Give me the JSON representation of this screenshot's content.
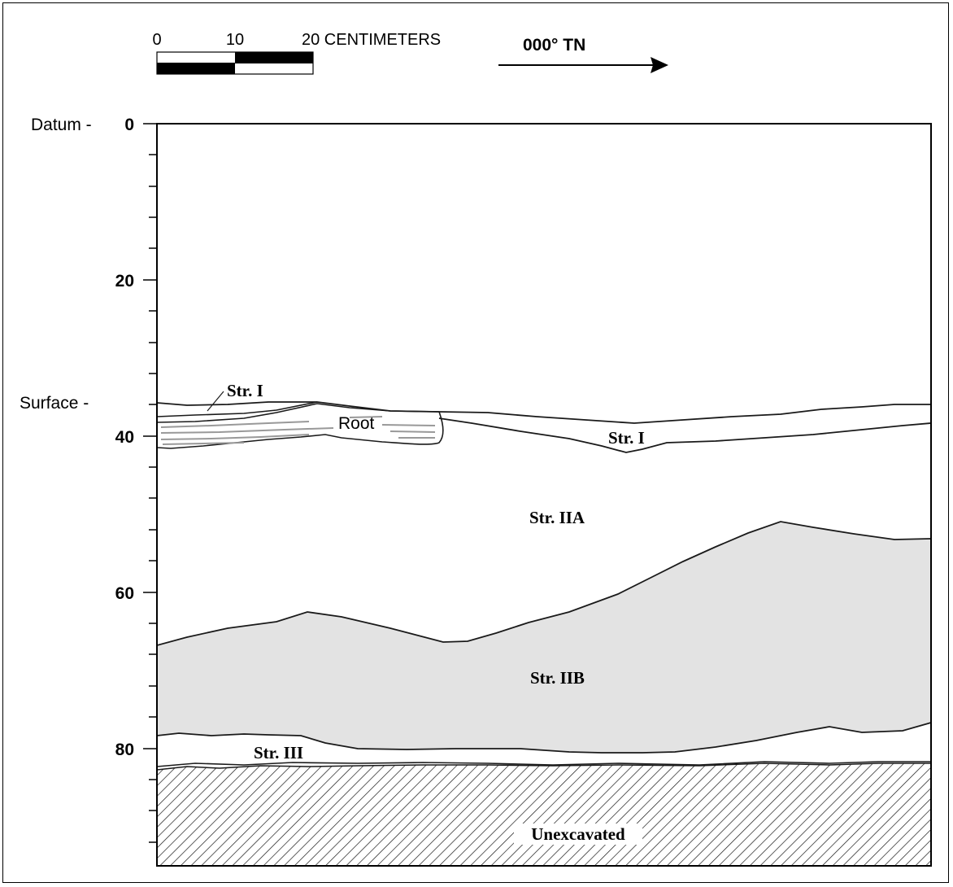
{
  "scale_bar": {
    "ticks": [
      "0",
      "10",
      "20 CENTIMETERS"
    ]
  },
  "orientation": {
    "label": "000° TN"
  },
  "depth_axis": {
    "tick_labels": [
      "0",
      "20",
      "40",
      "60",
      "80"
    ],
    "datum_label": "Datum -",
    "surface_label": "Surface -"
  },
  "strata_labels": {
    "str_i_upper": "Str. I",
    "root": "Root",
    "str_i_lower": "Str. I",
    "str_iia": "Str. IIA",
    "str_iib": "Str. IIB",
    "str_iii": "Str. III",
    "unexcavated": "Unexcavated"
  },
  "colors": {
    "line": "#1a1a1a",
    "str_iib_fill": "#e3e3e3",
    "paper": "#ffffff"
  }
}
